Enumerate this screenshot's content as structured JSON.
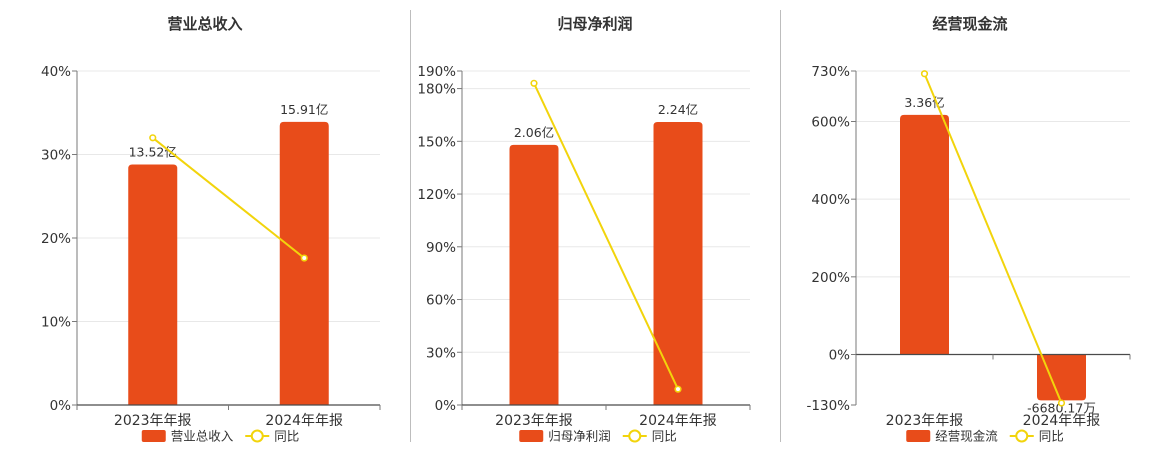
{
  "colors": {
    "bar": "#e84c1a",
    "line": "#f2d40c",
    "axis": "#7a7a7a",
    "grid": "#e8e8e8",
    "text": "#333333"
  },
  "chart_data": [
    {
      "type": "bar",
      "title": "营业总收入",
      "categories": [
        "2023年年报",
        "2024年年报"
      ],
      "bar_series": {
        "name": "营业总收入",
        "values": [
          28.8,
          33.9
        ],
        "labels": [
          "13.52亿",
          "15.91亿"
        ]
      },
      "line_series": {
        "name": "同比",
        "values": [
          32.0,
          17.6
        ]
      },
      "ylim": [
        0,
        40
      ],
      "y_ticks": [
        0,
        10,
        20,
        30,
        40
      ],
      "y_tick_labels": [
        "0%",
        "10%",
        "20%",
        "30%",
        "40%"
      ],
      "grid": true,
      "legend": "bottom"
    },
    {
      "type": "bar",
      "title": "归母净利润",
      "categories": [
        "2023年年报",
        "2024年年报"
      ],
      "bar_series": {
        "name": "归母净利润",
        "values": [
          148,
          161
        ],
        "labels": [
          "2.06亿",
          "2.24亿"
        ]
      },
      "line_series": {
        "name": "同比",
        "values": [
          183,
          9
        ]
      },
      "ylim": [
        0,
        190
      ],
      "y_ticks": [
        0,
        30,
        60,
        90,
        120,
        150,
        180,
        190
      ],
      "y_tick_labels": [
        "0%",
        "30%",
        "60%",
        "90%",
        "120%",
        "150%",
        "180%",
        "190%"
      ],
      "grid": true,
      "legend": "bottom"
    },
    {
      "type": "bar",
      "title": "经营现金流",
      "categories": [
        "2023年年报",
        "2024年年报"
      ],
      "bar_series": {
        "name": "经营现金流",
        "values": [
          617,
          -118
        ],
        "labels": [
          "3.36亿",
          "-6680.17万"
        ]
      },
      "line_series": {
        "name": "同比",
        "values": [
          723,
          -125
        ]
      },
      "ylim": [
        -130,
        730
      ],
      "y_ticks": [
        -130,
        0,
        200,
        400,
        600,
        730
      ],
      "y_tick_labels": [
        "-130%",
        "0%",
        "200%",
        "400%",
        "600%",
        "730%"
      ],
      "grid": true,
      "legend": "bottom"
    }
  ]
}
